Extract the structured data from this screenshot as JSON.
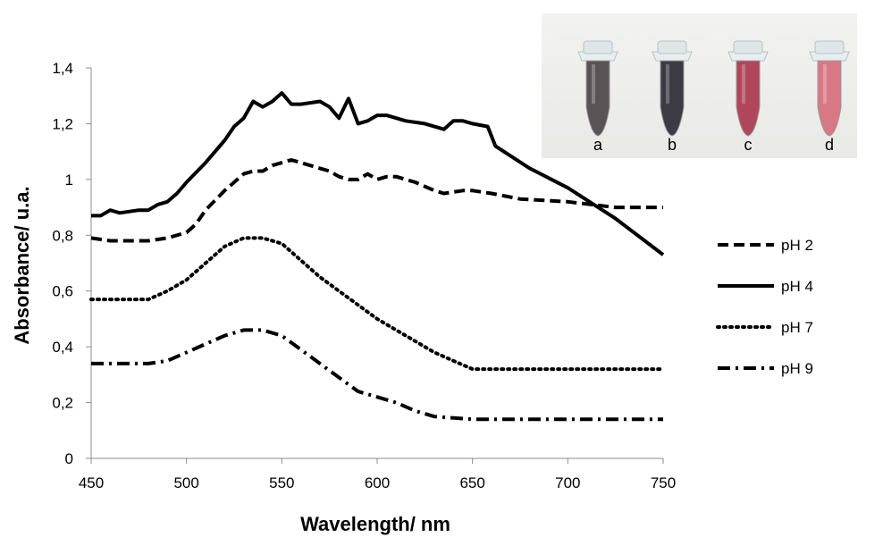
{
  "chart_data": {
    "type": "line",
    "title": "",
    "xlabel": "Wavelength/ nm",
    "ylabel": "Absorbance/ u.a.",
    "xlim": [
      450,
      750
    ],
    "ylim": [
      0,
      1.4
    ],
    "x_ticks": [
      "450",
      "500",
      "550",
      "600",
      "650",
      "700",
      "750"
    ],
    "y_ticks": [
      "0",
      "0,2",
      "0,4",
      "0,6",
      "0,8",
      "1",
      "1,2",
      "1,4"
    ],
    "grid": false,
    "legend_position": "right",
    "series": [
      {
        "name": "pH 2",
        "style": "dashed",
        "points": [
          [
            450,
            0.79
          ],
          [
            460,
            0.78
          ],
          [
            470,
            0.78
          ],
          [
            480,
            0.78
          ],
          [
            490,
            0.79
          ],
          [
            500,
            0.81
          ],
          [
            505,
            0.84
          ],
          [
            510,
            0.89
          ],
          [
            520,
            0.96
          ],
          [
            525,
            0.99
          ],
          [
            530,
            1.02
          ],
          [
            535,
            1.03
          ],
          [
            540,
            1.03
          ],
          [
            545,
            1.05
          ],
          [
            550,
            1.06
          ],
          [
            555,
            1.07
          ],
          [
            560,
            1.06
          ],
          [
            570,
            1.04
          ],
          [
            575,
            1.03
          ],
          [
            580,
            1.01
          ],
          [
            585,
            1.0
          ],
          [
            590,
            1.0
          ],
          [
            595,
            1.02
          ],
          [
            600,
            1.0
          ],
          [
            605,
            1.01
          ],
          [
            610,
            1.01
          ],
          [
            620,
            0.99
          ],
          [
            630,
            0.96
          ],
          [
            635,
            0.95
          ],
          [
            645,
            0.96
          ],
          [
            650,
            0.96
          ],
          [
            660,
            0.95
          ],
          [
            675,
            0.93
          ],
          [
            700,
            0.92
          ],
          [
            725,
            0.9
          ],
          [
            750,
            0.9
          ]
        ]
      },
      {
        "name": "pH 4",
        "style": "solid",
        "points": [
          [
            450,
            0.87
          ],
          [
            455,
            0.87
          ],
          [
            460,
            0.89
          ],
          [
            465,
            0.88
          ],
          [
            475,
            0.89
          ],
          [
            480,
            0.89
          ],
          [
            485,
            0.91
          ],
          [
            490,
            0.92
          ],
          [
            495,
            0.95
          ],
          [
            500,
            0.99
          ],
          [
            510,
            1.06
          ],
          [
            520,
            1.14
          ],
          [
            525,
            1.19
          ],
          [
            530,
            1.22
          ],
          [
            535,
            1.28
          ],
          [
            540,
            1.26
          ],
          [
            545,
            1.28
          ],
          [
            550,
            1.31
          ],
          [
            555,
            1.27
          ],
          [
            560,
            1.27
          ],
          [
            570,
            1.28
          ],
          [
            575,
            1.26
          ],
          [
            580,
            1.22
          ],
          [
            585,
            1.29
          ],
          [
            590,
            1.2
          ],
          [
            595,
            1.21
          ],
          [
            600,
            1.23
          ],
          [
            605,
            1.23
          ],
          [
            615,
            1.21
          ],
          [
            625,
            1.2
          ],
          [
            635,
            1.18
          ],
          [
            640,
            1.21
          ],
          [
            645,
            1.21
          ],
          [
            650,
            1.2
          ],
          [
            658,
            1.19
          ],
          [
            662,
            1.12
          ],
          [
            680,
            1.04
          ],
          [
            700,
            0.97
          ],
          [
            725,
            0.86
          ],
          [
            750,
            0.73
          ]
        ]
      },
      {
        "name": "pH 7",
        "style": "dotted",
        "points": [
          [
            450,
            0.57
          ],
          [
            460,
            0.57
          ],
          [
            470,
            0.57
          ],
          [
            480,
            0.57
          ],
          [
            490,
            0.6
          ],
          [
            500,
            0.64
          ],
          [
            510,
            0.7
          ],
          [
            520,
            0.76
          ],
          [
            530,
            0.79
          ],
          [
            540,
            0.79
          ],
          [
            550,
            0.77
          ],
          [
            560,
            0.71
          ],
          [
            570,
            0.65
          ],
          [
            580,
            0.6
          ],
          [
            590,
            0.55
          ],
          [
            600,
            0.5
          ],
          [
            610,
            0.46
          ],
          [
            620,
            0.42
          ],
          [
            630,
            0.38
          ],
          [
            640,
            0.35
          ],
          [
            650,
            0.32
          ],
          [
            660,
            0.32
          ],
          [
            700,
            0.32
          ],
          [
            750,
            0.32
          ]
        ]
      },
      {
        "name": "pH 9",
        "style": "dashdot",
        "points": [
          [
            450,
            0.34
          ],
          [
            460,
            0.34
          ],
          [
            480,
            0.34
          ],
          [
            490,
            0.35
          ],
          [
            500,
            0.38
          ],
          [
            510,
            0.41
          ],
          [
            520,
            0.44
          ],
          [
            530,
            0.46
          ],
          [
            540,
            0.46
          ],
          [
            550,
            0.44
          ],
          [
            560,
            0.39
          ],
          [
            570,
            0.34
          ],
          [
            580,
            0.29
          ],
          [
            590,
            0.24
          ],
          [
            600,
            0.22
          ],
          [
            610,
            0.2
          ],
          [
            620,
            0.17
          ],
          [
            630,
            0.15
          ],
          [
            650,
            0.14
          ],
          [
            700,
            0.14
          ],
          [
            750,
            0.14
          ]
        ]
      }
    ]
  },
  "inset_photo": {
    "labels": [
      "a",
      "b",
      "c",
      "d"
    ],
    "tube_colors": [
      "#5a5356",
      "#3c3b44",
      "#b0465c",
      "#d97885"
    ],
    "background_color": "#e9e9e6"
  }
}
